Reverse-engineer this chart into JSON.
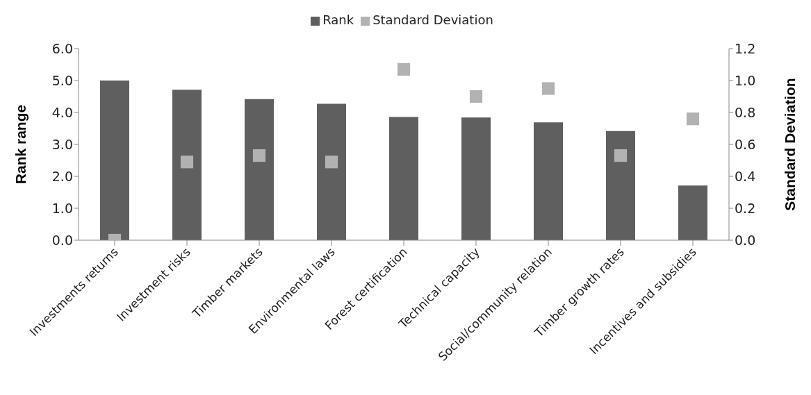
{
  "chart_data": {
    "type": "bar",
    "categories": [
      "Investments returns",
      "Investment risks",
      "Timber markets",
      "Environmental laws",
      "Forest certification",
      "Technical capacity",
      "Social/community relation",
      "Timber growth rates",
      "Incentives and subsidies"
    ],
    "series": [
      {
        "name": "Rank",
        "color": "#5f5f5f",
        "values": [
          5.0,
          4.71,
          4.42,
          4.27,
          3.86,
          3.84,
          3.69,
          3.42,
          1.71
        ]
      },
      {
        "name": "Standard Deviation",
        "type": "scatter",
        "axis": "y2",
        "color": "#b2b2b2",
        "values": [
          0,
          0.49,
          0.53,
          0.49,
          1.07,
          0.9,
          0.95,
          0.53,
          0.76
        ]
      }
    ],
    "ylabel": "Rank range",
    "y2label": "Standard Deviation",
    "ylim": [
      0,
      6
    ],
    "yticks": [
      {
        "value": 0,
        "label": "0.0"
      },
      {
        "value": 1,
        "label": "1.0"
      },
      {
        "value": 2,
        "label": "2.0"
      },
      {
        "value": 3,
        "label": "3.0"
      },
      {
        "value": 4,
        "label": "4.0"
      },
      {
        "value": 5,
        "label": "5.0"
      },
      {
        "value": 6,
        "label": "6.0"
      }
    ],
    "y2lim": [
      0,
      1.2
    ],
    "y2ticks": [
      {
        "value": 0,
        "label": "0.0"
      },
      {
        "value": 0.2,
        "label": "0.2"
      },
      {
        "value": 0.4,
        "label": "0.4"
      },
      {
        "value": 0.6,
        "label": "0.6"
      },
      {
        "value": 0.8,
        "label": "0.8"
      },
      {
        "value": 1,
        "label": "1.0"
      },
      {
        "value": 1.2,
        "label": "1.2"
      }
    ],
    "marker": "square",
    "legend": "top",
    "grid": false
  }
}
